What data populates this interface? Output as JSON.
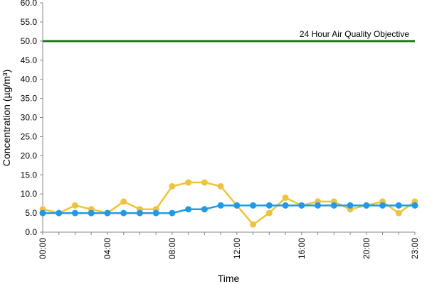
{
  "chart_data": {
    "type": "line",
    "title": "",
    "xlabel": "Time",
    "ylabel": "Concentration (µg/m³)",
    "x": [
      "00:00",
      "01:00",
      "02:00",
      "03:00",
      "04:00",
      "05:00",
      "06:00",
      "07:00",
      "08:00",
      "09:00",
      "10:00",
      "11:00",
      "12:00",
      "13:00",
      "14:00",
      "15:00",
      "16:00",
      "17:00",
      "18:00",
      "19:00",
      "20:00",
      "21:00",
      "22:00",
      "23:00"
    ],
    "x_tick_labels": [
      "00:00",
      "04:00",
      "08:00",
      "12:00",
      "16:00",
      "20:00",
      "23:00"
    ],
    "x_tick_hours": [
      0,
      4,
      8,
      12,
      16,
      20,
      23
    ],
    "ylim": [
      0,
      60
    ],
    "y_tick_labels": [
      "0.0",
      "5.0",
      "10.0",
      "15.0",
      "20.0",
      "25.0",
      "30.0",
      "35.0",
      "40.0",
      "45.0",
      "50.0",
      "55.0",
      "60.0"
    ],
    "y_tick_values": [
      0,
      5,
      10,
      15,
      20,
      25,
      30,
      35,
      40,
      45,
      50,
      55,
      60
    ],
    "grid": false,
    "series": [
      {
        "color": "#f2c335",
        "marker_color": "#e8c44a",
        "values": [
          6,
          5,
          7,
          6,
          5,
          8,
          6,
          6,
          12,
          13,
          13,
          12,
          7,
          2,
          5,
          9,
          7,
          8,
          8,
          6,
          7,
          8,
          5,
          8
        ]
      },
      {
        "color": "#1e9ae8",
        "marker_color": "#1e9ae8",
        "values": [
          5,
          5,
          5,
          5,
          5,
          5,
          5,
          5,
          5,
          6,
          6,
          7,
          7,
          7,
          7,
          7,
          7,
          7,
          7,
          7,
          7,
          7,
          7,
          7
        ]
      }
    ],
    "reference_line": {
      "value": 50,
      "label": "24 Hour Air Quality Objective",
      "color": "#1f7a1f"
    }
  }
}
